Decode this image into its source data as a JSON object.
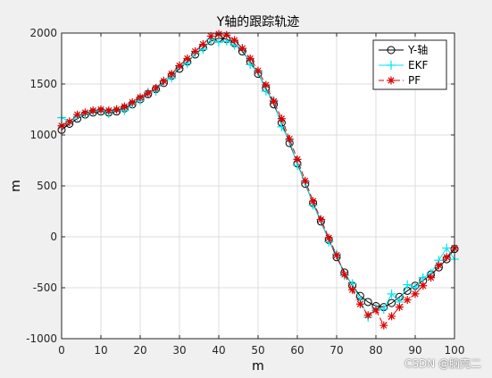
{
  "watermark": "CSDN @脑壳二",
  "chart_data": {
    "type": "line",
    "title": "Y轴的跟踪轨迹",
    "xlabel": "m",
    "ylabel": "m",
    "xlim": [
      0,
      100
    ],
    "ylim": [
      -1000,
      2000
    ],
    "xticks": [
      0,
      10,
      20,
      30,
      40,
      50,
      60,
      70,
      80,
      90,
      100
    ],
    "yticks": [
      -1000,
      -500,
      0,
      500,
      1000,
      1500,
      2000
    ],
    "grid": true,
    "legend_position": "top-right",
    "series": [
      {
        "name": "Y-轴",
        "color": "#000000",
        "marker": "circle",
        "line": "solid",
        "x": [
          0,
          2,
          4,
          6,
          8,
          10,
          12,
          14,
          16,
          18,
          20,
          22,
          24,
          26,
          28,
          30,
          32,
          34,
          36,
          38,
          40,
          42,
          44,
          46,
          48,
          50,
          52,
          54,
          56,
          58,
          60,
          62,
          64,
          66,
          68,
          70,
          72,
          74,
          76,
          78,
          80,
          82,
          84,
          86,
          88,
          90,
          92,
          94,
          96,
          98,
          100
        ],
        "values": [
          1050,
          1110,
          1160,
          1200,
          1220,
          1230,
          1220,
          1230,
          1260,
          1300,
          1350,
          1400,
          1450,
          1510,
          1580,
          1650,
          1720,
          1790,
          1860,
          1920,
          1950,
          1940,
          1900,
          1820,
          1720,
          1600,
          1460,
          1300,
          1120,
          920,
          720,
          520,
          330,
          150,
          -30,
          -200,
          -350,
          -480,
          -580,
          -640,
          -680,
          -690,
          -650,
          -590,
          -530,
          -480,
          -430,
          -370,
          -300,
          -220,
          -120
        ]
      },
      {
        "name": "EKF",
        "color": "#00e5ee",
        "marker": "plus",
        "line": "solid",
        "x": [
          0,
          2,
          4,
          6,
          8,
          10,
          12,
          14,
          16,
          18,
          20,
          22,
          24,
          26,
          28,
          30,
          32,
          34,
          36,
          38,
          40,
          42,
          44,
          46,
          48,
          50,
          52,
          54,
          56,
          58,
          60,
          62,
          64,
          66,
          68,
          70,
          72,
          74,
          76,
          78,
          80,
          82,
          84,
          86,
          88,
          90,
          92,
          94,
          96,
          98,
          100
        ],
        "values": [
          1170,
          1130,
          1180,
          1200,
          1230,
          1240,
          1210,
          1250,
          1240,
          1300,
          1340,
          1420,
          1430,
          1530,
          1560,
          1680,
          1700,
          1800,
          1840,
          1940,
          1910,
          1920,
          1880,
          1850,
          1690,
          1620,
          1430,
          1340,
          1080,
          950,
          700,
          540,
          310,
          170,
          -50,
          -170,
          -380,
          -460,
          -620,
          -790,
          -700,
          -710,
          -560,
          -640,
          -470,
          -500,
          -400,
          -360,
          -230,
          -110,
          -220
        ]
      },
      {
        "name": "PF",
        "color": "#e00000",
        "marker": "star",
        "line": "dashed",
        "x": [
          0,
          2,
          4,
          6,
          8,
          10,
          12,
          14,
          16,
          18,
          20,
          22,
          24,
          26,
          28,
          30,
          32,
          34,
          36,
          38,
          40,
          42,
          44,
          46,
          48,
          50,
          52,
          54,
          56,
          58,
          60,
          62,
          64,
          66,
          68,
          70,
          72,
          74,
          76,
          78,
          80,
          82,
          84,
          86,
          88,
          90,
          92,
          94,
          96,
          98,
          100
        ],
        "values": [
          1090,
          1130,
          1200,
          1220,
          1240,
          1250,
          1240,
          1250,
          1280,
          1320,
          1370,
          1410,
          1460,
          1530,
          1600,
          1680,
          1750,
          1820,
          1890,
          1970,
          1990,
          1980,
          1930,
          1850,
          1750,
          1630,
          1490,
          1330,
          1160,
          960,
          760,
          550,
          350,
          170,
          -10,
          -180,
          -370,
          -520,
          -660,
          -770,
          -720,
          -870,
          -780,
          -690,
          -620,
          -560,
          -480,
          -400,
          -280,
          -200,
          -110
        ]
      }
    ]
  }
}
